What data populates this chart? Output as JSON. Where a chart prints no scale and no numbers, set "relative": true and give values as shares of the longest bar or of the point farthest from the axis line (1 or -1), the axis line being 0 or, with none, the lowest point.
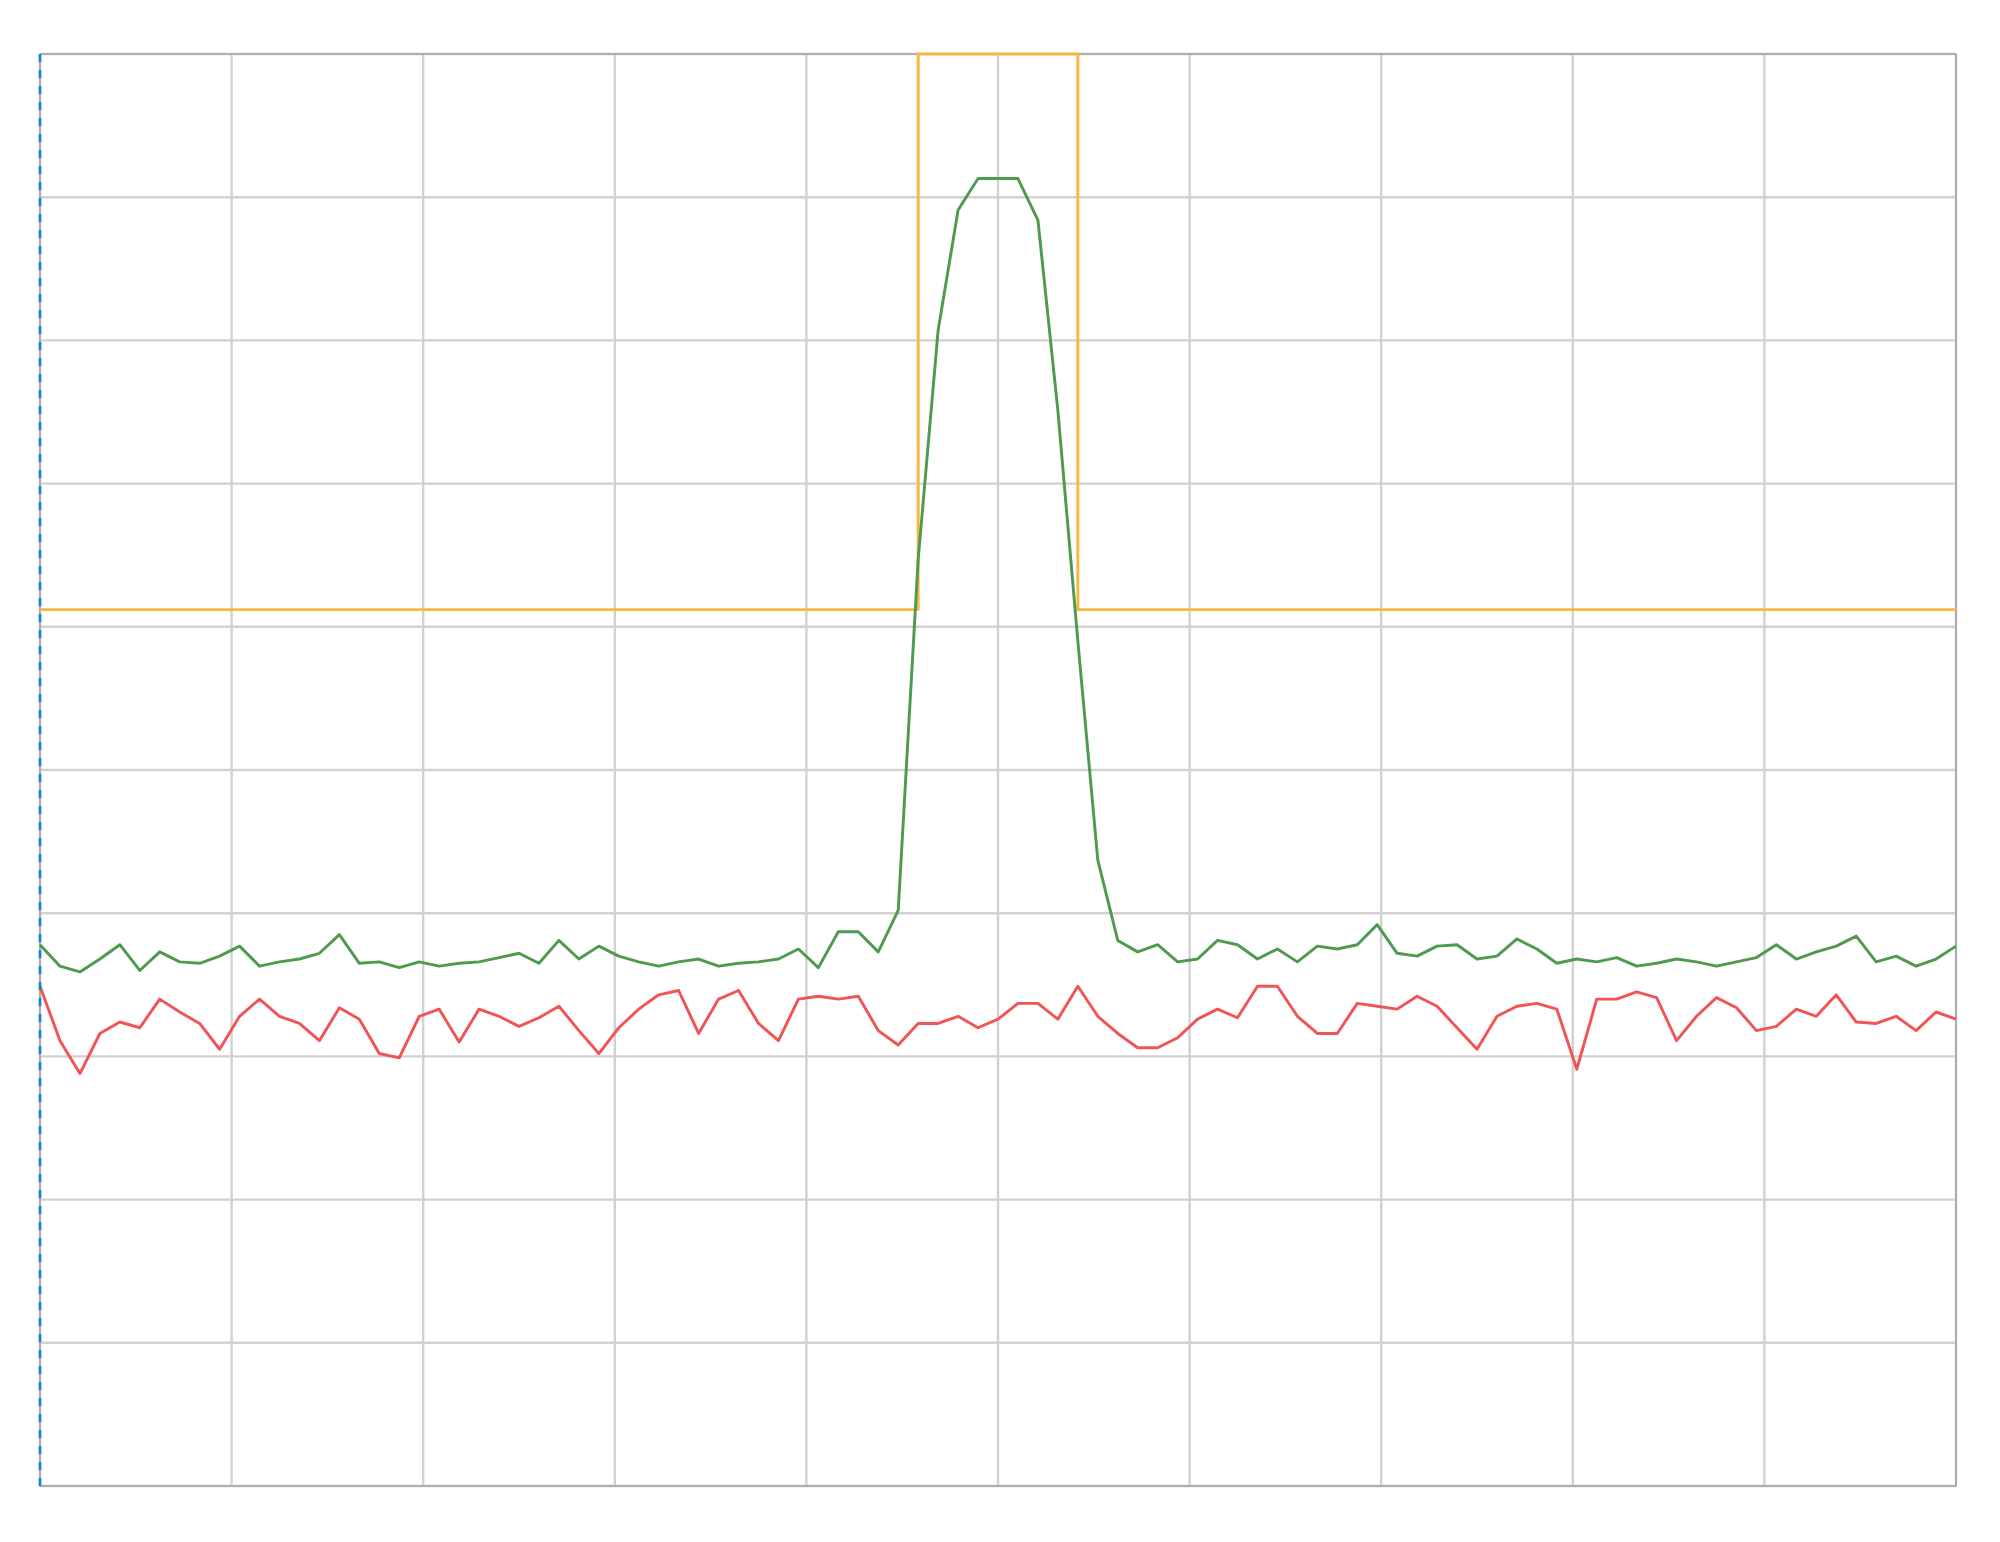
{
  "chart_data": {
    "type": "line",
    "relative": true,
    "grid": true,
    "categories": [
      null,
      null,
      null,
      null,
      null,
      null,
      null,
      null,
      null,
      null,
      null,
      null,
      null,
      null,
      null,
      null,
      null,
      null,
      null,
      null,
      null,
      null,
      null,
      null,
      null,
      null,
      null,
      null,
      null,
      null,
      null,
      null,
      null,
      null,
      null,
      null,
      null,
      null,
      null,
      null,
      null,
      null,
      null,
      null,
      null,
      null,
      null,
      null,
      null,
      null,
      null,
      null,
      null,
      null,
      null,
      null,
      null,
      null,
      null,
      null,
      null,
      null,
      null,
      null,
      null,
      null,
      null,
      null,
      null,
      null,
      null,
      null,
      null,
      null,
      null,
      null,
      null,
      null,
      null,
      null,
      null,
      null,
      null,
      null,
      null,
      null,
      null,
      null,
      null,
      null,
      null,
      null,
      null,
      null,
      null,
      null,
      null
    ],
    "series": [
      {
        "type": "step",
        "color": "#f7b842",
        "values": [
          0.612,
          0.612,
          0.612,
          0.612,
          0.612,
          0.612,
          0.612,
          0.612,
          0.612,
          0.612,
          0.612,
          0.612,
          0.612,
          0.612,
          0.612,
          0.612,
          0.612,
          0.612,
          0.612,
          0.612,
          0.612,
          0.612,
          0.612,
          0.612,
          0.612,
          0.612,
          0.612,
          0.612,
          0.612,
          0.612,
          0.612,
          0.612,
          0.612,
          0.612,
          0.612,
          0.612,
          0.612,
          0.612,
          0.612,
          0.612,
          0.612,
          0.612,
          0.612,
          0.612,
          1,
          1,
          1,
          1,
          1,
          1,
          1,
          1,
          0.612,
          0.612,
          0.612,
          0.612,
          0.612,
          0.612,
          0.612,
          0.612,
          0.612,
          0.612,
          0.612,
          0.612,
          0.612,
          0.612,
          0.612,
          0.612,
          0.612,
          0.612,
          0.612,
          0.612,
          0.612,
          0.612,
          0.612,
          0.612,
          0.612,
          0.612,
          0.612,
          0.612,
          0.612,
          0.612,
          0.612,
          0.612,
          0.612,
          0.612,
          0.612,
          0.612,
          0.612,
          0.612,
          0.612,
          0.612,
          0.612,
          0.612,
          0.612,
          0.612,
          0.612
        ]
      },
      {
        "color": "#4e9a4e",
        "values": [
          0.378,
          0.363,
          0.359,
          0.368,
          0.378,
          0.36,
          0.373,
          0.366,
          0.365,
          0.37,
          0.377,
          0.363,
          0.366,
          0.368,
          0.372,
          0.385,
          0.365,
          0.366,
          0.362,
          0.366,
          0.363,
          0.365,
          0.366,
          0.369,
          0.372,
          0.365,
          0.381,
          0.368,
          0.377,
          0.37,
          0.366,
          0.363,
          0.366,
          0.368,
          0.363,
          0.365,
          0.366,
          0.368,
          0.375,
          0.362,
          0.387,
          0.387,
          0.373,
          0.402,
          0.647,
          0.807,
          0.891,
          0.913,
          0.913,
          0.913,
          0.884,
          0.751,
          0.59,
          0.437,
          0.381,
          0.373,
          0.378,
          0.366,
          0.368,
          0.381,
          0.378,
          0.368,
          0.375,
          0.366,
          0.377,
          0.375,
          0.378,
          0.392,
          0.372,
          0.37,
          0.377,
          0.378,
          0.368,
          0.37,
          0.382,
          0.375,
          0.365,
          0.368,
          0.366,
          0.369,
          0.363,
          0.365,
          0.368,
          0.366,
          0.363,
          0.366,
          0.369,
          0.378,
          0.368,
          0.373,
          0.377,
          0.384,
          0.366,
          0.37,
          0.363,
          0.368,
          0.377
        ]
      },
      {
        "color": "#f05454",
        "values": [
          0.349,
          0.311,
          0.288,
          0.316,
          0.324,
          0.32,
          0.34,
          0.331,
          0.323,
          0.305,
          0.328,
          0.34,
          0.328,
          0.323,
          0.311,
          0.334,
          0.326,
          0.302,
          0.299,
          0.328,
          0.333,
          0.31,
          0.333,
          0.328,
          0.321,
          0.327,
          0.335,
          0.318,
          0.302,
          0.32,
          0.333,
          0.343,
          0.346,
          0.316,
          0.34,
          0.346,
          0.323,
          0.311,
          0.34,
          0.342,
          0.34,
          0.342,
          0.318,
          0.308,
          0.323,
          0.323,
          0.328,
          0.32,
          0.326,
          0.337,
          0.337,
          0.326,
          0.349,
          0.328,
          0.316,
          0.306,
          0.306,
          0.313,
          0.326,
          0.333,
          0.327,
          0.349,
          0.349,
          0.328,
          0.316,
          0.316,
          0.337,
          0.335,
          0.333,
          0.342,
          0.335,
          0.32,
          0.305,
          0.328,
          0.335,
          0.337,
          0.333,
          0.291,
          0.34,
          0.34,
          0.345,
          0.341,
          0.311,
          0.328,
          0.341,
          0.334,
          0.318,
          0.321,
          0.333,
          0.328,
          0.343,
          0.324,
          0.323,
          0.328,
          0.318,
          0.331,
          0.326
        ]
      }
    ]
  }
}
